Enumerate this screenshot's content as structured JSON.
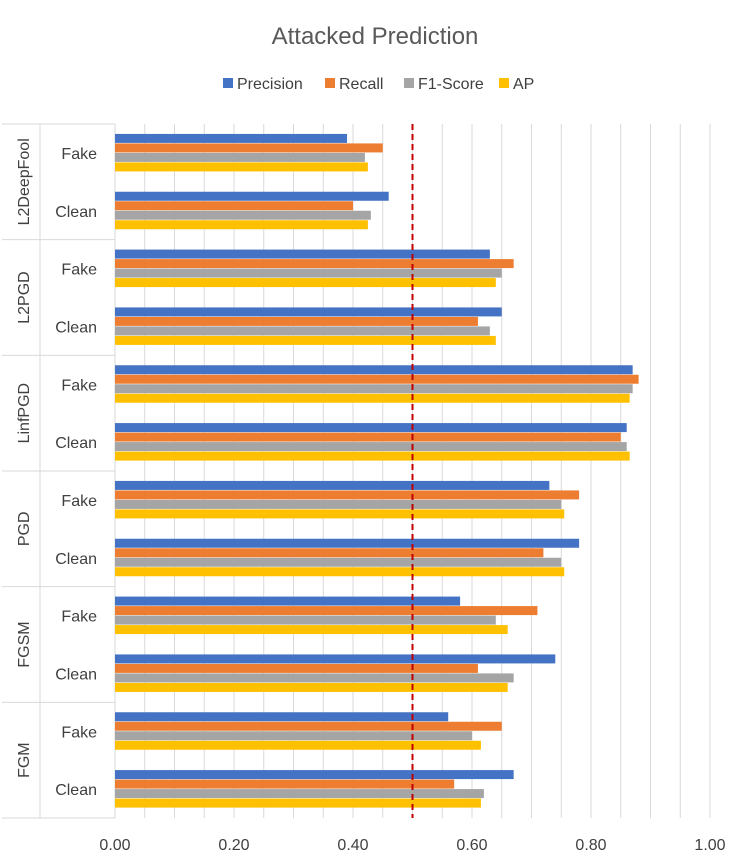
{
  "chart_data": {
    "type": "bar",
    "orientation": "horizontal",
    "title": "Attacked Prediction",
    "xlabel": "",
    "ylabel": "",
    "xlim": [
      0,
      1
    ],
    "x_ticks": [
      "0.00",
      "0.20",
      "0.40",
      "0.60",
      "0.80",
      "1.00"
    ],
    "x_tick_values": [
      0,
      0.2,
      0.4,
      0.6,
      0.8,
      1.0
    ],
    "grid_step": 0.05,
    "reference_line": {
      "value": 0.5,
      "style": "dashed",
      "color": "#c00000"
    },
    "legend_position": "top",
    "series": [
      {
        "name": "Precision",
        "color": "#4472c4"
      },
      {
        "name": "Recall",
        "color": "#ed7d31"
      },
      {
        "name": "F1-Score",
        "color": "#a5a5a5"
      },
      {
        "name": "AP",
        "color": "#ffc000"
      }
    ],
    "groups": [
      {
        "name": "L2DeepFool",
        "rows": [
          {
            "label": "Fake",
            "values": [
              0.39,
              0.45,
              0.42,
              0.425
            ]
          },
          {
            "label": "Clean",
            "values": [
              0.46,
              0.4,
              0.43,
              0.425
            ]
          }
        ]
      },
      {
        "name": "L2PGD",
        "rows": [
          {
            "label": "Fake",
            "values": [
              0.63,
              0.67,
              0.65,
              0.64
            ]
          },
          {
            "label": "Clean",
            "values": [
              0.65,
              0.61,
              0.63,
              0.64
            ]
          }
        ]
      },
      {
        "name": "LinfPGD",
        "rows": [
          {
            "label": "Fake",
            "values": [
              0.87,
              0.88,
              0.87,
              0.865
            ]
          },
          {
            "label": "Clean",
            "values": [
              0.86,
              0.85,
              0.86,
              0.865
            ]
          }
        ]
      },
      {
        "name": "PGD",
        "rows": [
          {
            "label": "Fake",
            "values": [
              0.73,
              0.78,
              0.75,
              0.755
            ]
          },
          {
            "label": "Clean",
            "values": [
              0.78,
              0.72,
              0.75,
              0.755
            ]
          }
        ]
      },
      {
        "name": "FGSM",
        "rows": [
          {
            "label": "Fake",
            "values": [
              0.58,
              0.71,
              0.64,
              0.66
            ]
          },
          {
            "label": "Clean",
            "values": [
              0.74,
              0.61,
              0.67,
              0.66
            ]
          }
        ]
      },
      {
        "name": "FGM",
        "rows": [
          {
            "label": "Fake",
            "values": [
              0.56,
              0.65,
              0.6,
              0.615
            ]
          },
          {
            "label": "Clean",
            "values": [
              0.67,
              0.57,
              0.62,
              0.615
            ]
          }
        ]
      }
    ]
  }
}
